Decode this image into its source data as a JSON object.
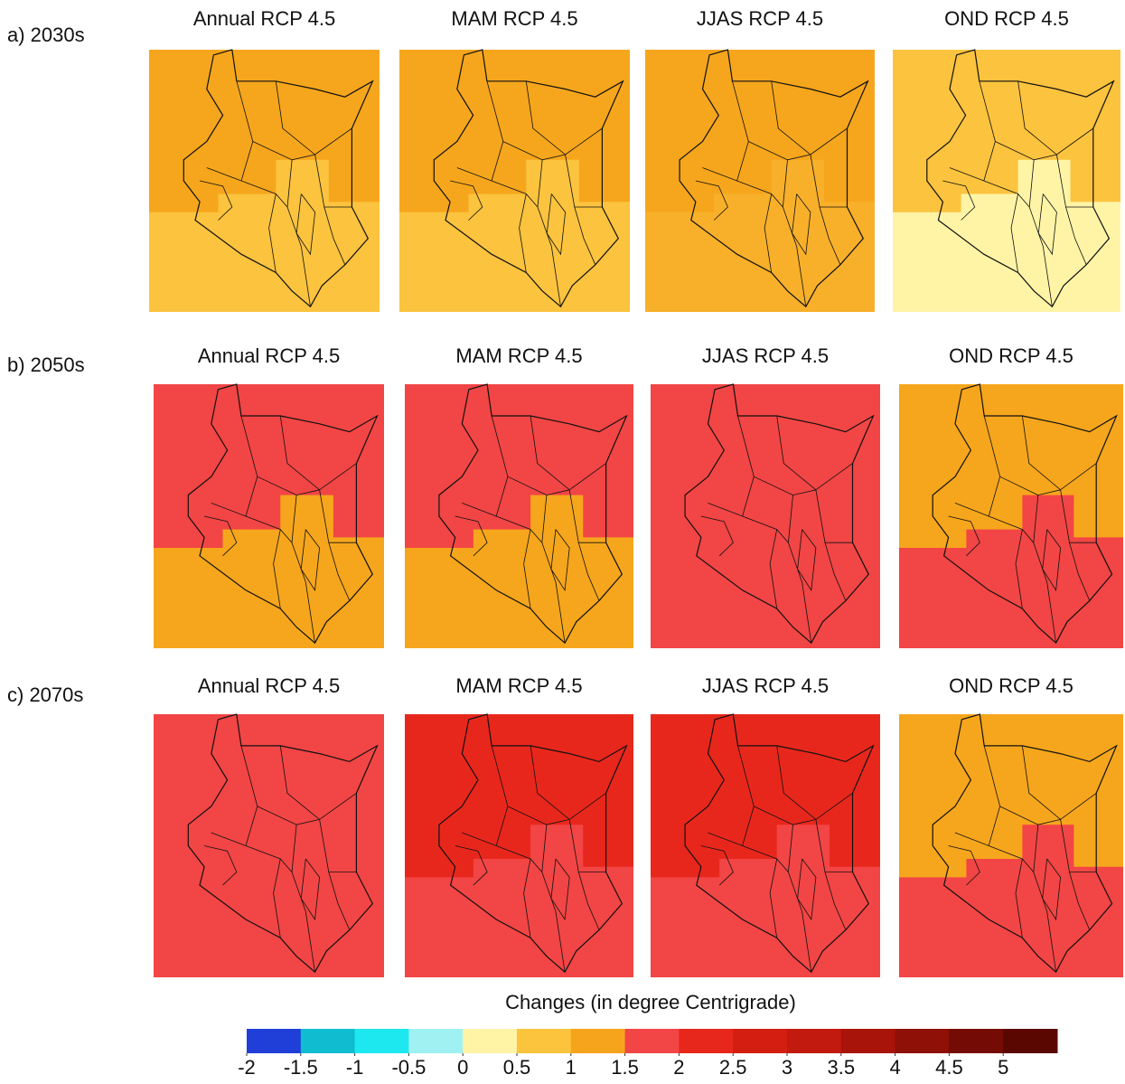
{
  "rows": [
    {
      "label": "a) 2030s",
      "panels": [
        {
          "title": "Annual RCP 4.5",
          "fill": "#f6a61c",
          "patch": "#fbc33e"
        },
        {
          "title": "MAM RCP 4.5",
          "fill": "#f6a61c",
          "patch": "#fbc33e"
        },
        {
          "title": "JJAS RCP 4.5",
          "fill": "#f6a61c",
          "patch": "#f8b02a"
        },
        {
          "title": "OND RCP 4.5",
          "fill": "#fbc33e",
          "patch": "#fff4a6"
        }
      ]
    },
    {
      "label": "b) 2050s",
      "panels": [
        {
          "title": "Annual RCP 4.5",
          "fill": "#f24545",
          "patch": "#f6a61c"
        },
        {
          "title": "MAM RCP 4.5",
          "fill": "#f24545",
          "patch": "#f6a61c"
        },
        {
          "title": "JJAS RCP 4.5",
          "fill": "#f24545",
          "patch": "#f24545"
        },
        {
          "title": "OND RCP 4.5",
          "fill": "#f6a61c",
          "patch": "#f24545"
        }
      ]
    },
    {
      "label": "c) 2070s",
      "panels": [
        {
          "title": "Annual RCP 4.5",
          "fill": "#f24545",
          "patch": "#f24545"
        },
        {
          "title": "MAM RCP 4.5",
          "fill": "#e8271c",
          "patch": "#f24545"
        },
        {
          "title": "JJAS RCP 4.5",
          "fill": "#e8271c",
          "patch": "#f24545"
        },
        {
          "title": "OND RCP 4.5",
          "fill": "#f6a61c",
          "patch": "#f24545"
        }
      ]
    }
  ],
  "colorbar": {
    "label": "Changes (in degree Centrigrade)",
    "lim": [
      -2,
      5.5
    ],
    "ticks": [
      -2,
      -1.5,
      -1,
      -0.5,
      0,
      0.5,
      1,
      1.5,
      2,
      2.5,
      3,
      3.5,
      4,
      4.5,
      5
    ],
    "colors": [
      "#1f3fd8",
      "#10bcd0",
      "#1de8f0",
      "#a0f2f2",
      "#fff4a6",
      "#fbc43c",
      "#f6a41c",
      "#f24545",
      "#e8271c",
      "#d41e12",
      "#c21a0e",
      "#a81409",
      "#8e1006",
      "#740b04",
      "#5a0702"
    ]
  }
}
